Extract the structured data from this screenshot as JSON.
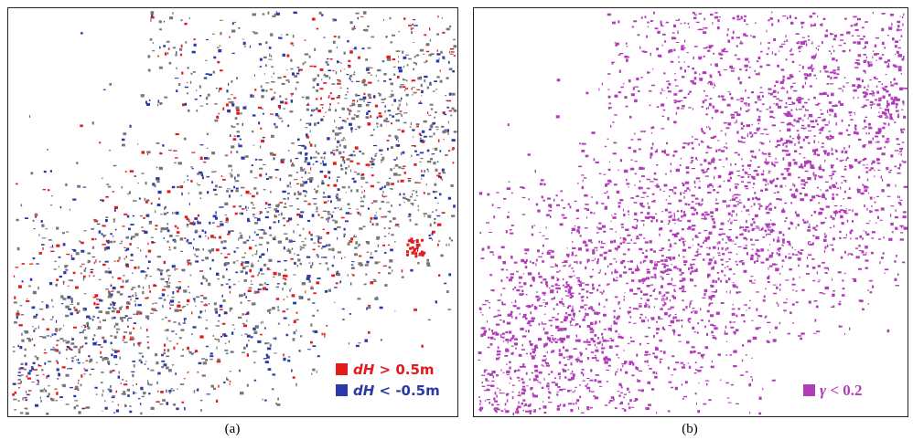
{
  "panels": [
    {
      "legend": [
        {
          "symbol": "dH",
          "text": "> 0.5m",
          "color": "#e21b1b"
        },
        {
          "symbol": "dH",
          "text": "< -0.5m",
          "color": "#2a3aa8"
        }
      ],
      "caption": "(a)"
    },
    {
      "legend": [
        {
          "symbol": "γ",
          "text": "< 0.2",
          "color": "#b03cb8"
        }
      ],
      "caption": "(b)"
    }
  ]
}
